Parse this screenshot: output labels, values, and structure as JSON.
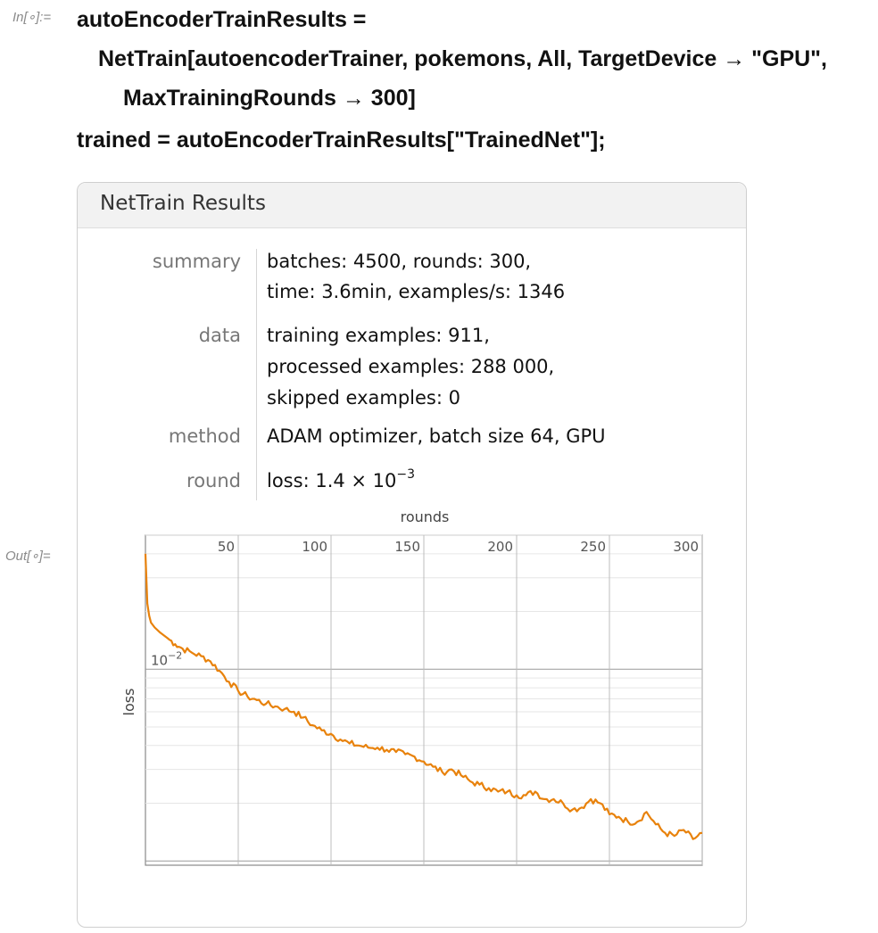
{
  "cells": {
    "in_label": "In[∘]:=",
    "out_label": "Out[∘]="
  },
  "code": {
    "line1": "autoEncoderTrainResults =",
    "line2": "NetTrain[autoencoderTrainer, pokemons, All, TargetDevice → \"GPU\",",
    "line3": "MaxTrainingRounds → 300]",
    "line4": "trained = autoEncoderTrainResults[\"TrainedNet\"];"
  },
  "panel": {
    "title": "NetTrain Results",
    "rows": [
      {
        "label": "summary",
        "lines": [
          "batches: 4500, rounds: 300,",
          "time: 3.6min, examples/s: 1346"
        ]
      },
      {
        "label": "data",
        "lines": [
          "training examples: 911,",
          "processed examples: 288 000,",
          "skipped examples: 0"
        ]
      },
      {
        "label": "method",
        "lines": [
          "ADAM optimizer, batch size 64, GPU"
        ]
      },
      {
        "label": "round",
        "loss_prefix": "loss: ",
        "loss_mantissa": "1.4 × 10",
        "loss_exponent": "−3"
      }
    ]
  },
  "chart_data": {
    "type": "line",
    "xlabel": "rounds",
    "ylabel": "loss",
    "y_scale": "log",
    "xlim": [
      0,
      300
    ],
    "x_ticks": [
      50,
      100,
      150,
      200,
      250,
      300
    ],
    "x_tick_labels": [
      "50",
      "100",
      "150",
      "200",
      "250",
      "300"
    ],
    "y_tick_label_base": "10",
    "y_tick_label_exponent": "−2",
    "y_tick_value": 0.01,
    "ylim": [
      0.00095,
      0.05
    ],
    "line_color": "#e8820c",
    "series": [
      {
        "x": [
          0,
          1,
          2,
          3,
          5,
          8,
          12,
          16,
          20,
          25,
          30,
          35,
          40,
          45,
          50,
          55,
          60,
          65,
          70,
          75,
          80,
          85,
          90,
          95,
          100,
          105,
          110,
          115,
          120,
          125,
          130,
          135,
          140,
          145,
          150,
          155,
          160,
          165,
          170,
          175,
          180,
          185,
          190,
          195,
          200,
          205,
          210,
          215,
          220,
          225,
          230,
          235,
          240,
          245,
          250,
          255,
          260,
          265,
          270,
          275,
          280,
          285,
          290,
          295,
          300
        ],
        "y": [
          0.04,
          0.022,
          0.019,
          0.0175,
          0.0165,
          0.0155,
          0.0145,
          0.0135,
          0.0128,
          0.0122,
          0.0117,
          0.011,
          0.0098,
          0.0086,
          0.0077,
          0.0072,
          0.0069,
          0.0066,
          0.0064,
          0.0062,
          0.006,
          0.0056,
          0.0051,
          0.0048,
          0.0046,
          0.0043,
          0.0041,
          0.004,
          0.0039,
          0.0039,
          0.0038,
          0.0037,
          0.0036,
          0.0035,
          0.0033,
          0.0031,
          0.0029,
          0.003,
          0.0028,
          0.0026,
          0.0025,
          0.0024,
          0.0023,
          0.0023,
          0.0022,
          0.0022,
          0.0023,
          0.0021,
          0.0021,
          0.002,
          0.00185,
          0.0019,
          0.0021,
          0.002,
          0.00175,
          0.0017,
          0.0016,
          0.0016,
          0.0018,
          0.00155,
          0.0014,
          0.00135,
          0.00145,
          0.0013,
          0.0014
        ]
      }
    ]
  }
}
